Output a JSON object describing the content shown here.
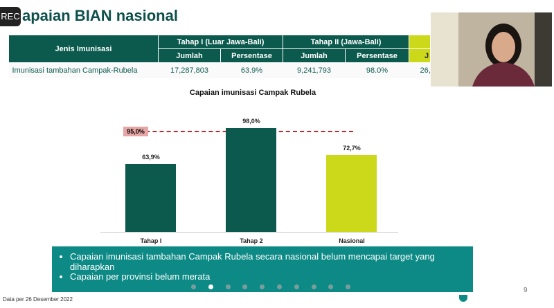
{
  "rec_label": "REC",
  "title": "apaian BIAN nasional",
  "table": {
    "col0": "Jenis Imunisasi",
    "groups": [
      "Tahap I (Luar Jawa-Bali)",
      "Tahap II (Jawa-Bali)"
    ],
    "sub": [
      "Jumlah",
      "Persentase",
      "Jumlah",
      "Persentase",
      "J"
    ],
    "row": [
      "Imunisasi tambahan Campak-Rubela",
      "17,287,803",
      "63.9%",
      "9,241,793",
      "98.0%",
      "26,"
    ]
  },
  "chart_data": {
    "type": "bar",
    "title": "Capaian imunisasi Campak Rubela",
    "categories": [
      "Tahap I",
      "Tahap 2",
      "Nasional"
    ],
    "values": [
      63.9,
      98.0,
      72.7
    ],
    "value_labels": [
      "63,9%",
      "98,0%",
      "72,7%"
    ],
    "colors": [
      "#0c5a4e",
      "#0c5a4e",
      "#ccd91a"
    ],
    "target": 95.0,
    "target_label": "95,0%",
    "ylim": [
      0,
      100
    ]
  },
  "bullets": [
    "Capaian imunisasi tambahan Campak Rubela secara nasional belum mencapai target yang diharapkan",
    "Capaian per provinsi belum merata"
  ],
  "footer": "Data per 26 Desember 2022",
  "page_number": "9",
  "carousel": {
    "count": 10,
    "active": 1
  }
}
